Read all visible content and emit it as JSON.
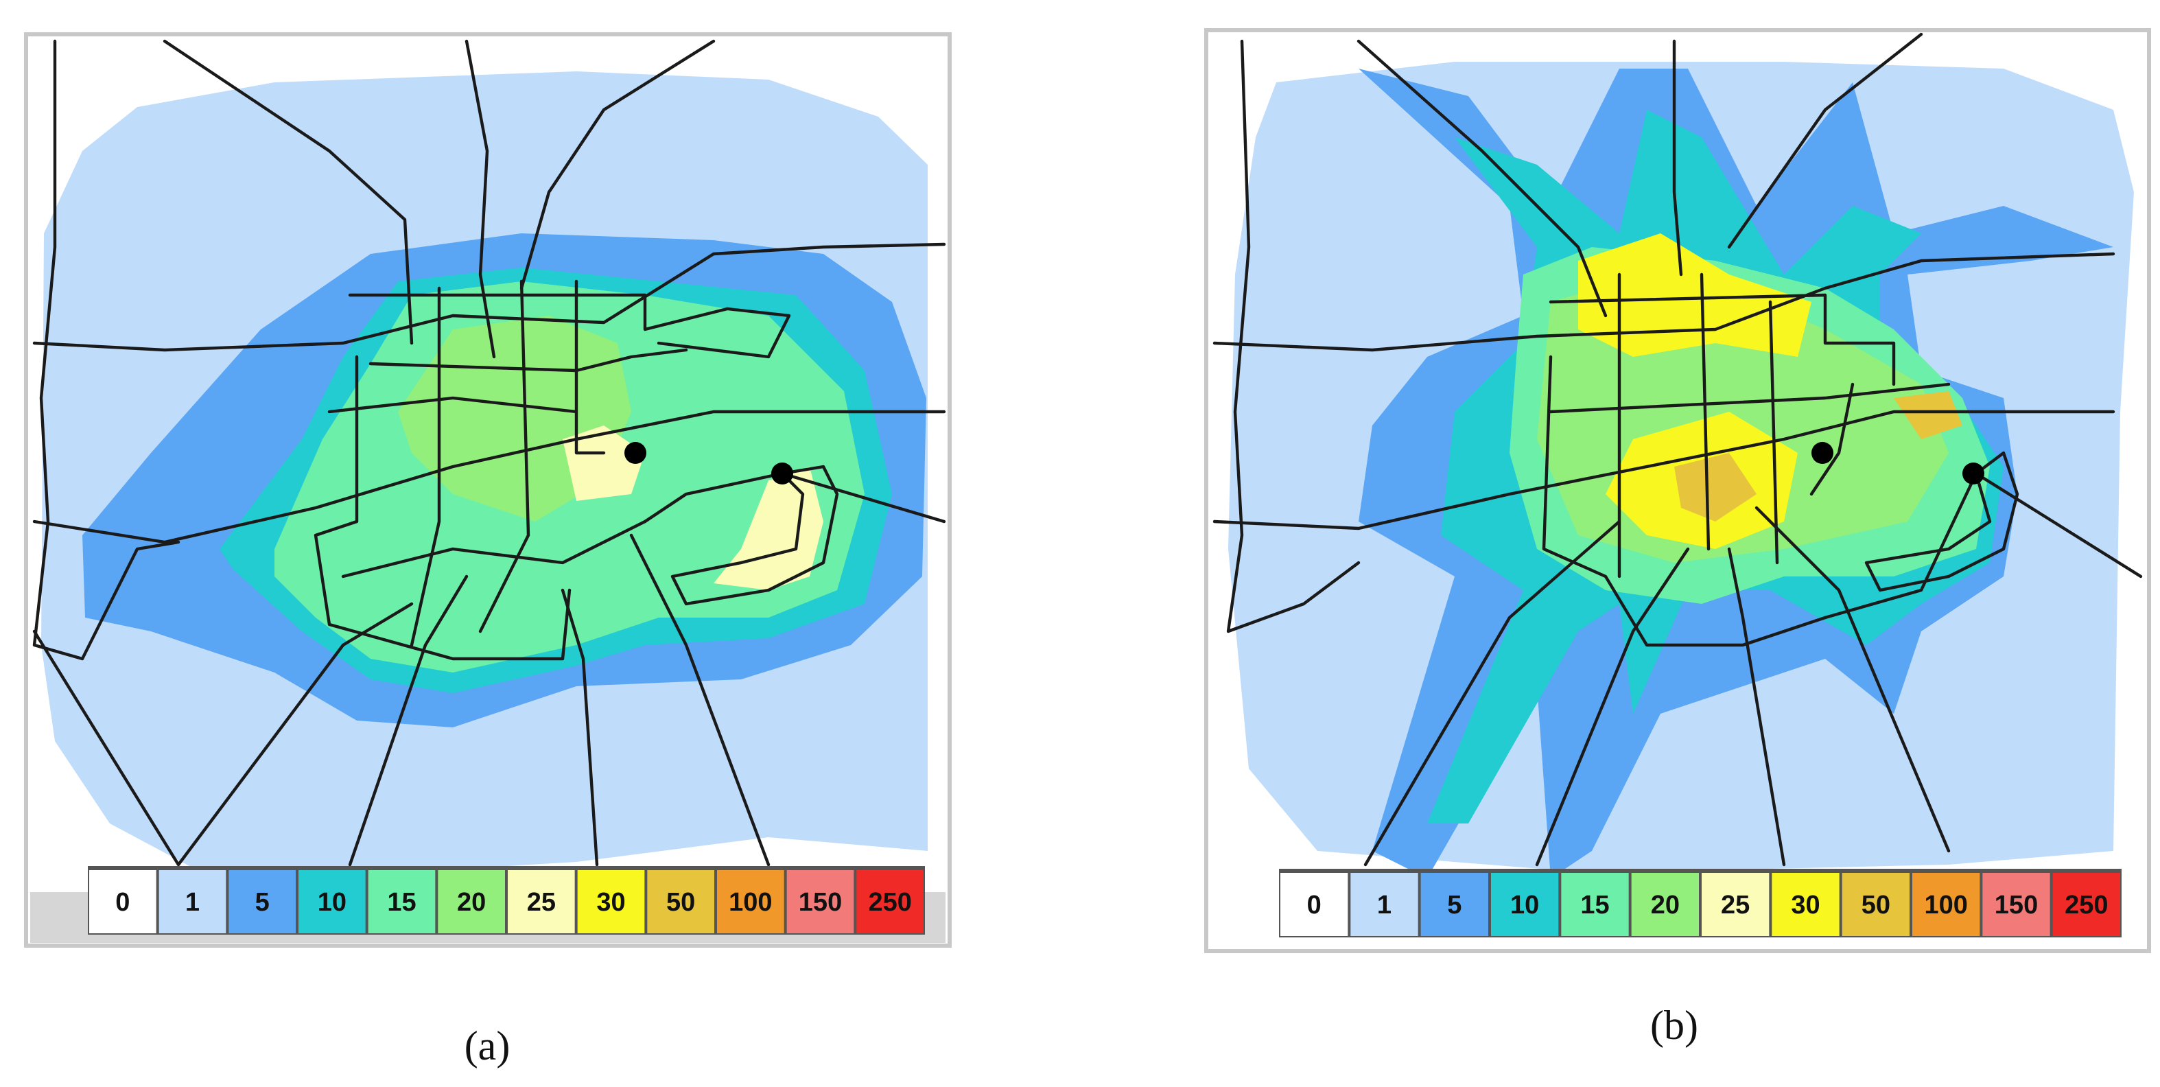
{
  "panels": [
    {
      "label": "(a)",
      "legend": [
        {
          "value": 0,
          "color": "#ffffff"
        },
        {
          "value": 1,
          "color": "#bfdcfb"
        },
        {
          "value": 5,
          "color": "#5aa6f5"
        },
        {
          "value": 10,
          "color": "#22ccd0"
        },
        {
          "value": 15,
          "color": "#6cefa8"
        },
        {
          "value": 20,
          "color": "#92ef7c"
        },
        {
          "value": 25,
          "color": "#fafcb8"
        },
        {
          "value": 30,
          "color": "#f8f820"
        },
        {
          "value": 50,
          "color": "#e6c43c"
        },
        {
          "value": 100,
          "color": "#f0982a"
        },
        {
          "value": 150,
          "color": "#f27a78"
        },
        {
          "value": 250,
          "color": "#f02a26"
        }
      ]
    },
    {
      "label": "(b)",
      "legend": [
        {
          "value": 0,
          "color": "#ffffff"
        },
        {
          "value": 1,
          "color": "#bfdcfb"
        },
        {
          "value": 5,
          "color": "#5aa6f5"
        },
        {
          "value": 10,
          "color": "#22ccd0"
        },
        {
          "value": 15,
          "color": "#6cefa8"
        },
        {
          "value": 20,
          "color": "#92ef7c"
        },
        {
          "value": 25,
          "color": "#fafcb8"
        },
        {
          "value": 30,
          "color": "#f8f820"
        },
        {
          "value": 50,
          "color": "#e6c43c"
        },
        {
          "value": 100,
          "color": "#f0982a"
        },
        {
          "value": 150,
          "color": "#f27a78"
        },
        {
          "value": 250,
          "color": "#f02a26"
        }
      ]
    }
  ]
}
